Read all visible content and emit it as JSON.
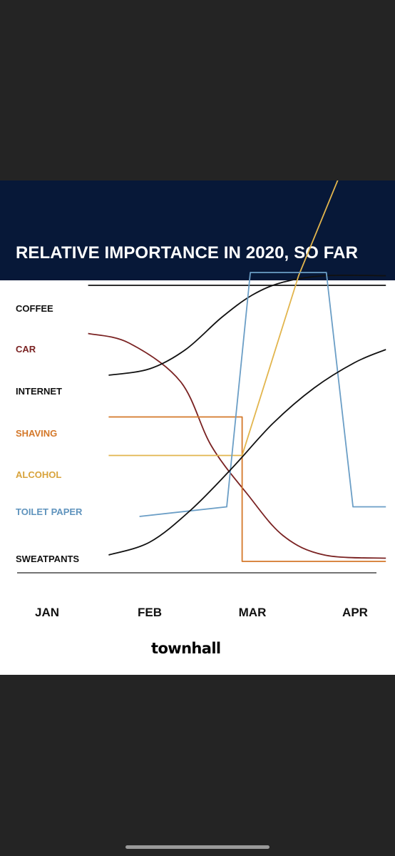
{
  "colors": {
    "background": "#242424",
    "title_bar": "#071838",
    "card": "#ffffff",
    "coffee": "#111111",
    "car": "#7a2222",
    "internet": "#111111",
    "shaving": "#d4782a",
    "alcohol": "#e2b54d",
    "toilet_paper": "#6b9ec6",
    "sweatpants": "#111111"
  },
  "brand": "townhall",
  "chart_data": {
    "type": "line",
    "title": "RELATIVE IMPORTANCE IN 2020, SO FAR",
    "categories": [
      "JAN",
      "FEB",
      "MAR",
      "APR"
    ],
    "x_unit": "month (1 = JAN, 4 = APR)",
    "ylim": [
      0,
      100
    ],
    "grid": false,
    "series": [
      {
        "name": "COFFEE",
        "color": "#111111",
        "x": [
          1.4,
          4.3
        ],
        "y": [
          90,
          90
        ]
      },
      {
        "name": "CAR",
        "color": "#7a2222",
        "x": [
          1.4,
          1.8,
          2.3,
          2.6,
          2.95,
          3.3,
          3.7,
          4.3
        ],
        "y": [
          75,
          72,
          60,
          40,
          25,
          12,
          6,
          5
        ]
      },
      {
        "name": "INTERNET",
        "color": "#111111",
        "x": [
          1.6,
          2.0,
          2.35,
          2.7,
          3.0,
          3.3,
          3.7,
          4.3
        ],
        "y": [
          62,
          64,
          70,
          80,
          87,
          91,
          93,
          93
        ]
      },
      {
        "name": "SHAVING",
        "color": "#d4782a",
        "x": [
          1.6,
          2.9,
          2.9,
          4.3
        ],
        "y": [
          49,
          49,
          4,
          4
        ]
      },
      {
        "name": "ALCOHOL",
        "color": "#e2b54d",
        "x": [
          1.6,
          2.9,
          3.45,
          3.95
        ],
        "y": [
          37,
          37,
          93,
          132
        ]
      },
      {
        "name": "TOILET PAPER",
        "color": "#6b9ec6",
        "x": [
          1.9,
          2.75,
          2.98,
          3.72,
          3.98,
          4.3
        ],
        "y": [
          18,
          21,
          94,
          94,
          21,
          21
        ]
      },
      {
        "name": "SWEATPANTS",
        "color": "#111111",
        "x": [
          1.6,
          2.0,
          2.4,
          2.8,
          3.2,
          3.6,
          4.0,
          4.3
        ],
        "y": [
          6,
          10,
          20,
          33,
          47,
          58,
          66,
          70
        ]
      }
    ]
  }
}
